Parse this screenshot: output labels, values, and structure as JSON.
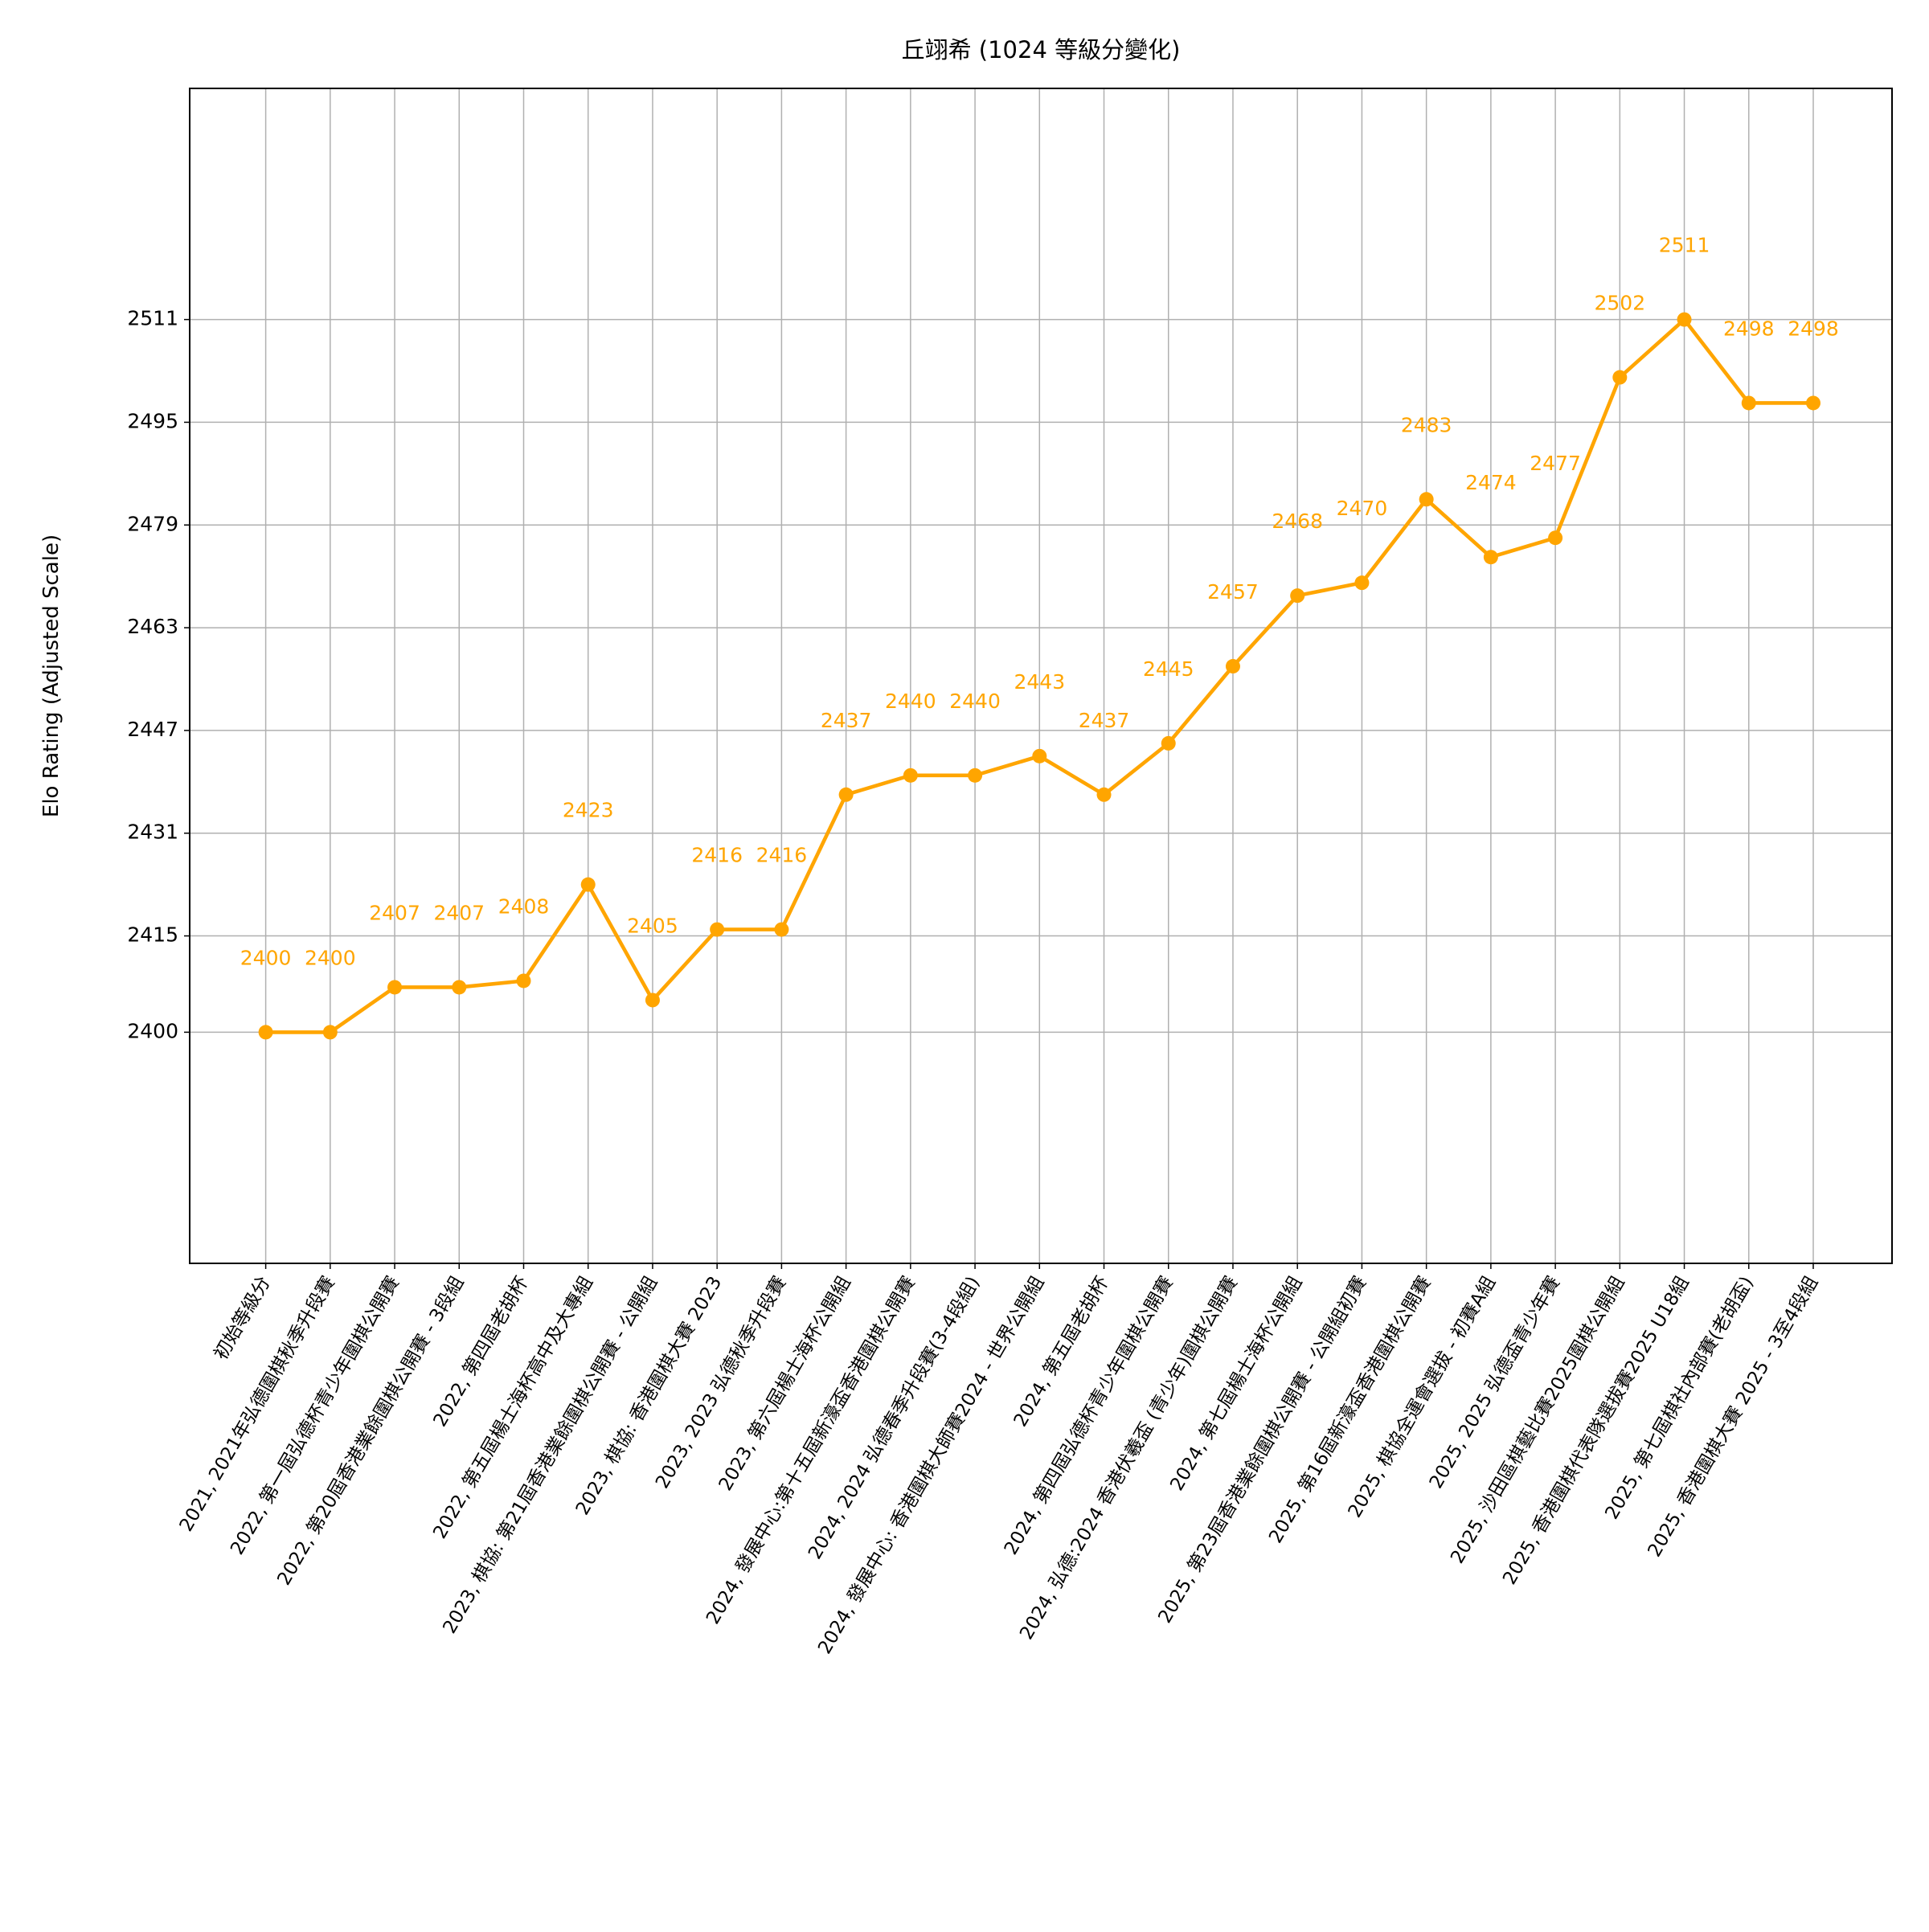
{
  "chart_data": {
    "type": "line",
    "title": "丘翊希 (1024 等級分變化)",
    "y_label": "Elo Rating (Adjusted Scale)",
    "categories": [
      "初始等級分",
      "2021, 2021年弘德圍棋秋季升段賽",
      "2022, 第一屆弘德杯青少年圍棋公開賽",
      "2022, 第20屆香港業餘圍棋公開賽 - 3段組",
      "2022, 第四屆老胡杯",
      "2022, 第五屆楊士海杯高中及大專組",
      "2023, 棋協: 第21屆香港業餘圍棋公開賽 - 公開組",
      "2023, 棋協: 香港圍棋大賽 2023",
      "2023, 2023 弘德秋季升段賽",
      "2023, 第六屆楊士海杯公開組",
      "2024, 發展中心:第十五屆新濠盃香港圍棋公開賽",
      "2024, 2024 弘德春季升段賽(3-4段組)",
      "2024, 發展中心: 香港圍棋大師賽2024 - 世界公開組",
      "2024, 第五屆老胡杯",
      "2024, 第四屆弘德杯青少年圍棋公開賽",
      "2024, 弘德:2024 香港伏羲盃 (青少年)圍棋公開賽",
      "2024, 第七屆楊士海杯公開組",
      "2025, 第23屆香港業餘圍棋公開賽 - 公開組初賽",
      "2025, 第16屆新濠盃香港圍棋公開賽",
      "2025, 棋協全運會選拔 - 初賽A組",
      "2025, 2025 弘德盃青少年賽",
      "2025, 沙田區棋藝比賽2025圍棋公開組",
      "2025, 香港圍棋代表隊選拔賽2025 U18組",
      "2025, 第七屆棋社內部賽(老胡盃)",
      "2025, 香港圍棋大賽 2025 - 3至4段組"
    ],
    "values": [
      2400,
      2400,
      2407,
      2407,
      2408,
      2423,
      2405,
      2416,
      2416,
      2437,
      2440,
      2440,
      2443,
      2437,
      2445,
      2457,
      2468,
      2470,
      2483,
      2474,
      2477,
      2502,
      2511,
      2498,
      2498
    ],
    "color": "#ffa500",
    "ylim": [
      2364,
      2547
    ],
    "yticks": [
      2400,
      2415,
      2431,
      2447,
      2463,
      2479,
      2495,
      2511
    ],
    "grid": true
  }
}
